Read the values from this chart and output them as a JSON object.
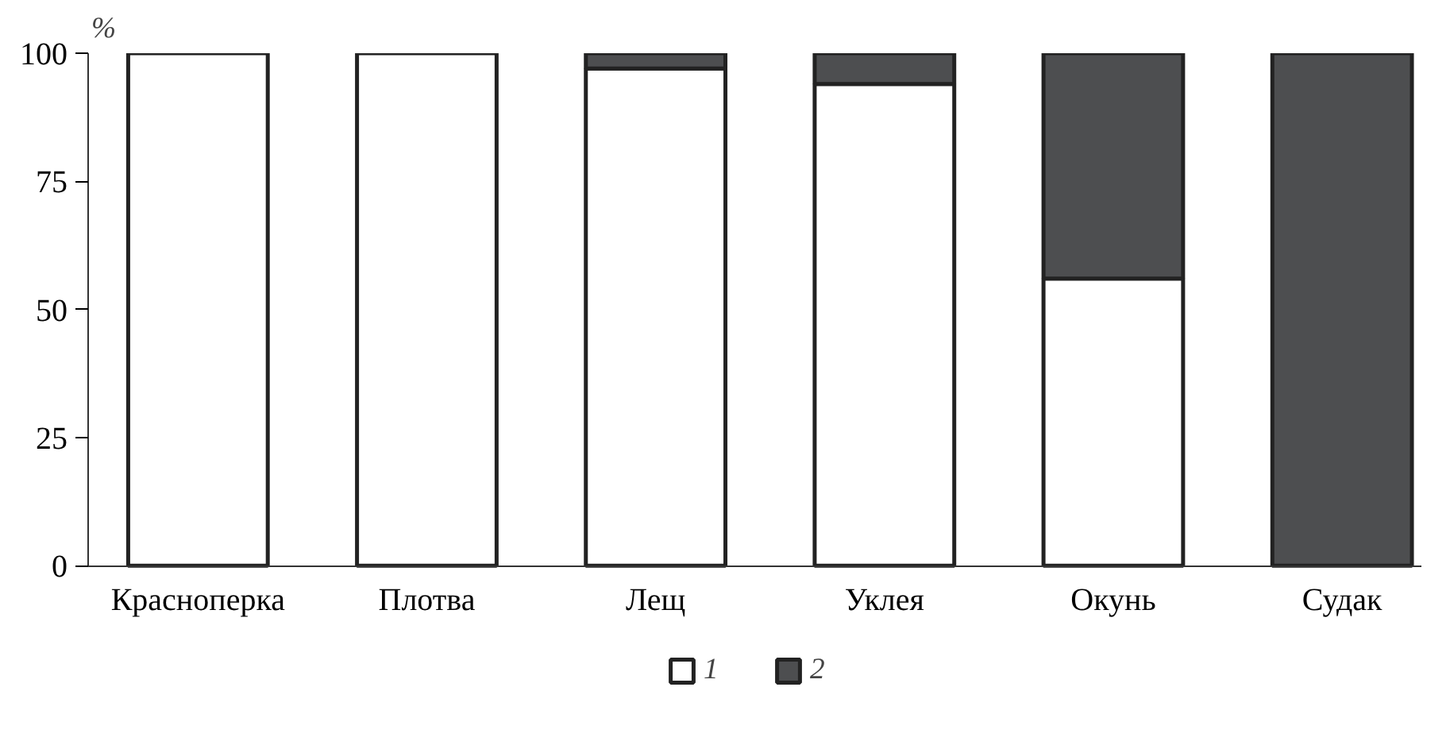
{
  "chart_data": {
    "type": "bar",
    "stacked": true,
    "ylabel": "%",
    "categories": [
      "Красноперка",
      "Плотва",
      "Лещ",
      "Уклея",
      "Окунь",
      "Судак"
    ],
    "series": [
      {
        "name": "1",
        "color": "#ffffff",
        "values": [
          100,
          100,
          97,
          94,
          56,
          0
        ]
      },
      {
        "name": "2",
        "color": "#4d4e50",
        "values": [
          0,
          0,
          3,
          6,
          44,
          100
        ]
      }
    ],
    "ylim": [
      0,
      100
    ],
    "yticks": [
      0,
      25,
      50,
      75,
      100
    ],
    "grid": false,
    "legend": "bottom"
  }
}
